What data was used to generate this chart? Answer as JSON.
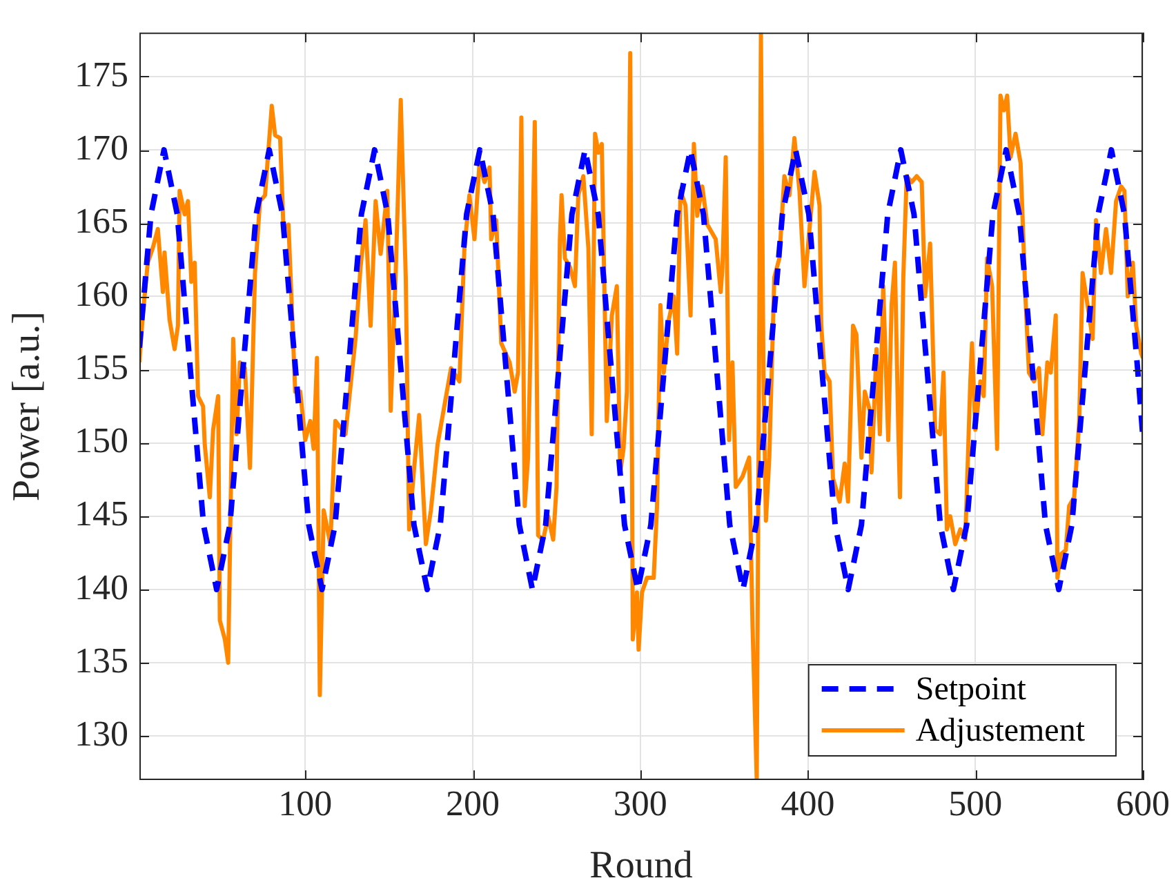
{
  "chart_data": {
    "type": "line",
    "xlabel": "Round",
    "ylabel": "Power [a.u.]",
    "xlim": [
      1,
      600
    ],
    "ylim": [
      127,
      178
    ],
    "xticks": [
      100,
      200,
      300,
      400,
      500,
      600
    ],
    "yticks": [
      130,
      135,
      140,
      145,
      150,
      155,
      160,
      165,
      170,
      175
    ],
    "grid": true,
    "legend": "bottom right",
    "marker": "none",
    "series": [
      {
        "name": "Setpoint",
        "color": "#0000ff",
        "line_style": "dashed",
        "x": [
          1,
          7.9,
          15.7,
          23.6,
          31.4,
          39.3,
          47.1,
          55,
          62.8,
          70.7,
          78.5,
          86.4,
          94.2,
          102.1,
          110,
          117.8,
          125.7,
          133.5,
          141.4,
          149.2,
          157.1,
          164.9,
          172.8,
          180.6,
          188.5,
          196.3,
          204.2,
          212.1,
          219.9,
          227.8,
          235.6,
          243.5,
          251.3,
          259.2,
          267,
          274.9,
          282.7,
          290.6,
          298.5,
          306.3,
          314.2,
          322,
          329.9,
          337.7,
          345.6,
          353.4,
          361.3,
          369.1,
          377,
          384.8,
          392.7,
          400.6,
          408.4,
          416.3,
          424.1,
          432,
          439.8,
          447.7,
          455.5,
          463.4,
          471.2,
          479.1,
          486.9,
          494.8,
          502.7,
          510.5,
          518.4,
          526.2,
          534.1,
          541.9,
          549.8,
          557.6,
          565.5,
          573.3,
          581.2,
          589,
          596.9,
          600
        ],
        "values": [
          156.5,
          165.6,
          170,
          165.6,
          155,
          144.4,
          140,
          144.4,
          155,
          165.6,
          170,
          165.6,
          155,
          144.4,
          140,
          144.4,
          155,
          165.6,
          170,
          165.6,
          155,
          144.4,
          140,
          144.4,
          155,
          165.6,
          170,
          165.6,
          155,
          144.4,
          140,
          144.4,
          155,
          165.6,
          170,
          165.6,
          155,
          144.4,
          140,
          144.4,
          155,
          165.6,
          170,
          165.6,
          155,
          144.4,
          140,
          144.4,
          155,
          165.6,
          170,
          165.6,
          155,
          144.4,
          140,
          144.4,
          155,
          165.6,
          170,
          165.6,
          155,
          144.4,
          140,
          144.4,
          155,
          165.6,
          170,
          165.6,
          155,
          144.4,
          140,
          144.4,
          155,
          165.6,
          170,
          165.6,
          155,
          150.4
        ]
      },
      {
        "name": "Adjustement",
        "color": "#ff8800",
        "line_style": "solid",
        "x": [
          1,
          3,
          6,
          9,
          12,
          15,
          16,
          19,
          22,
          24,
          25,
          28,
          30,
          32,
          34,
          36,
          39,
          40,
          43,
          45,
          48,
          49,
          52,
          54,
          57,
          59,
          61,
          64,
          67,
          70,
          73,
          76,
          80,
          82,
          85,
          87,
          90,
          94,
          97,
          100,
          103,
          105,
          107,
          108.7,
          111,
          115,
          118,
          124,
          130,
          133,
          136,
          139,
          142,
          145,
          149,
          151,
          154,
          157,
          160,
          162,
          165,
          168,
          172,
          175,
          179,
          183,
          187,
          192,
          195,
          198,
          201,
          204,
          207,
          210,
          211,
          214,
          217,
          222,
          225,
          227,
          229,
          231,
          233,
          235,
          237,
          239,
          242,
          245,
          248,
          250,
          252,
          253,
          255,
          258,
          261,
          263,
          266,
          269,
          271,
          273,
          275,
          277,
          280,
          283,
          286,
          288,
          290,
          292,
          294,
          295.5,
          298,
          299,
          301,
          304,
          308,
          310,
          312,
          314,
          317,
          320,
          322,
          324,
          327,
          330,
          332,
          334,
          337,
          340,
          345,
          348,
          349,
          351,
          353,
          355,
          357,
          361,
          365,
          367,
          369.5,
          372,
          373.5,
          375,
          377,
          380,
          383,
          386,
          389,
          392,
          395,
          398,
          404,
          407,
          408,
          410,
          413,
          415,
          419,
          422,
          424,
          427,
          429,
          432,
          434,
          437,
          438,
          441,
          443,
          445,
          448,
          450,
          452,
          454,
          455,
          457,
          459,
          462,
          465,
          468,
          470,
          473,
          476,
          479,
          481,
          483,
          485,
          488,
          491,
          494,
          497,
          498,
          500,
          503,
          505,
          507,
          510,
          513,
          515,
          517,
          519,
          521,
          524,
          527,
          530,
          532,
          535,
          538,
          540,
          543,
          545,
          548,
          549,
          551,
          554,
          556,
          559,
          562,
          564,
          567,
          570,
          572,
          575,
          578,
          581,
          584,
          587,
          589,
          591,
          594,
          596,
          599,
          600
        ],
        "values": [
          155.5,
          158.7,
          162.3,
          163.3,
          164.6,
          160.3,
          163,
          158.4,
          156.4,
          158,
          167.2,
          165.6,
          166.5,
          161,
          162.3,
          153.2,
          152.5,
          149.9,
          146.3,
          150.9,
          153.2,
          137.9,
          136.6,
          135,
          157.1,
          150.6,
          155.5,
          155.1,
          148.3,
          161.6,
          166.5,
          166.9,
          173,
          171,
          170.8,
          164.6,
          164.9,
          153.5,
          153.5,
          150.2,
          151.5,
          149.6,
          155.8,
          132.8,
          145.4,
          143.1,
          151.5,
          150.6,
          157.1,
          162,
          165.2,
          158,
          166.5,
          162.9,
          167.2,
          152.2,
          161.6,
          173.4,
          161.3,
          144.1,
          148.3,
          151.9,
          143.1,
          145.4,
          149.9,
          152.5,
          155.1,
          154.2,
          163.3,
          166.9,
          163.9,
          169.1,
          167.8,
          168.8,
          163.9,
          165.2,
          156.8,
          155.5,
          153.5,
          154.8,
          172.2,
          145.7,
          149,
          159.4,
          171.9,
          143.7,
          143.4,
          145,
          143.4,
          147,
          163.9,
          166.9,
          162.6,
          162,
          160.7,
          166.9,
          168.2,
          163.3,
          150.6,
          171.1,
          169.8,
          170.4,
          151.5,
          158.7,
          160.7,
          148,
          149.6,
          153.5,
          176.6,
          136.6,
          139.8,
          135.9,
          139.8,
          140.8,
          140.8,
          145.7,
          159.4,
          154.8,
          158.4,
          160,
          156.1,
          167.2,
          166.2,
          158.7,
          170.4,
          165.5,
          167.5,
          164.9,
          163.9,
          160.3,
          161.9,
          169.5,
          150.2,
          155.5,
          147,
          147.7,
          149,
          137.5,
          127,
          178,
          154.8,
          144.7,
          149,
          161.3,
          162.6,
          168.2,
          166.9,
          170.8,
          167.2,
          160.7,
          168.5,
          166.2,
          158,
          154.8,
          154.2,
          147.6,
          146,
          148.6,
          146,
          158,
          157.4,
          149,
          153.5,
          152.2,
          148,
          156.4,
          150.6,
          160.7,
          150.2,
          159.4,
          162.3,
          150.9,
          146.3,
          161.3,
          168.2,
          167.8,
          168.2,
          167.8,
          160,
          163.6,
          150.9,
          150.6,
          154.8,
          144.1,
          145,
          143.1,
          144.1,
          143.4,
          154.2,
          156.8,
          150.9,
          154.2,
          153.2,
          162.6,
          160.7,
          149.6,
          173.7,
          172.7,
          173.7,
          169.5,
          171.1,
          169.1,
          159.7,
          154.8,
          154.2,
          155.1,
          150.6,
          155.5,
          154.8,
          158.7,
          140.8,
          142.4,
          142.7,
          145.7,
          146.3,
          151.5,
          161.6,
          159.4,
          157.1,
          165.2,
          161.6,
          164.6,
          161.6,
          166.5,
          167.5,
          167.2,
          160,
          162.3,
          158,
          156.1,
          155.8
        ]
      }
    ]
  }
}
